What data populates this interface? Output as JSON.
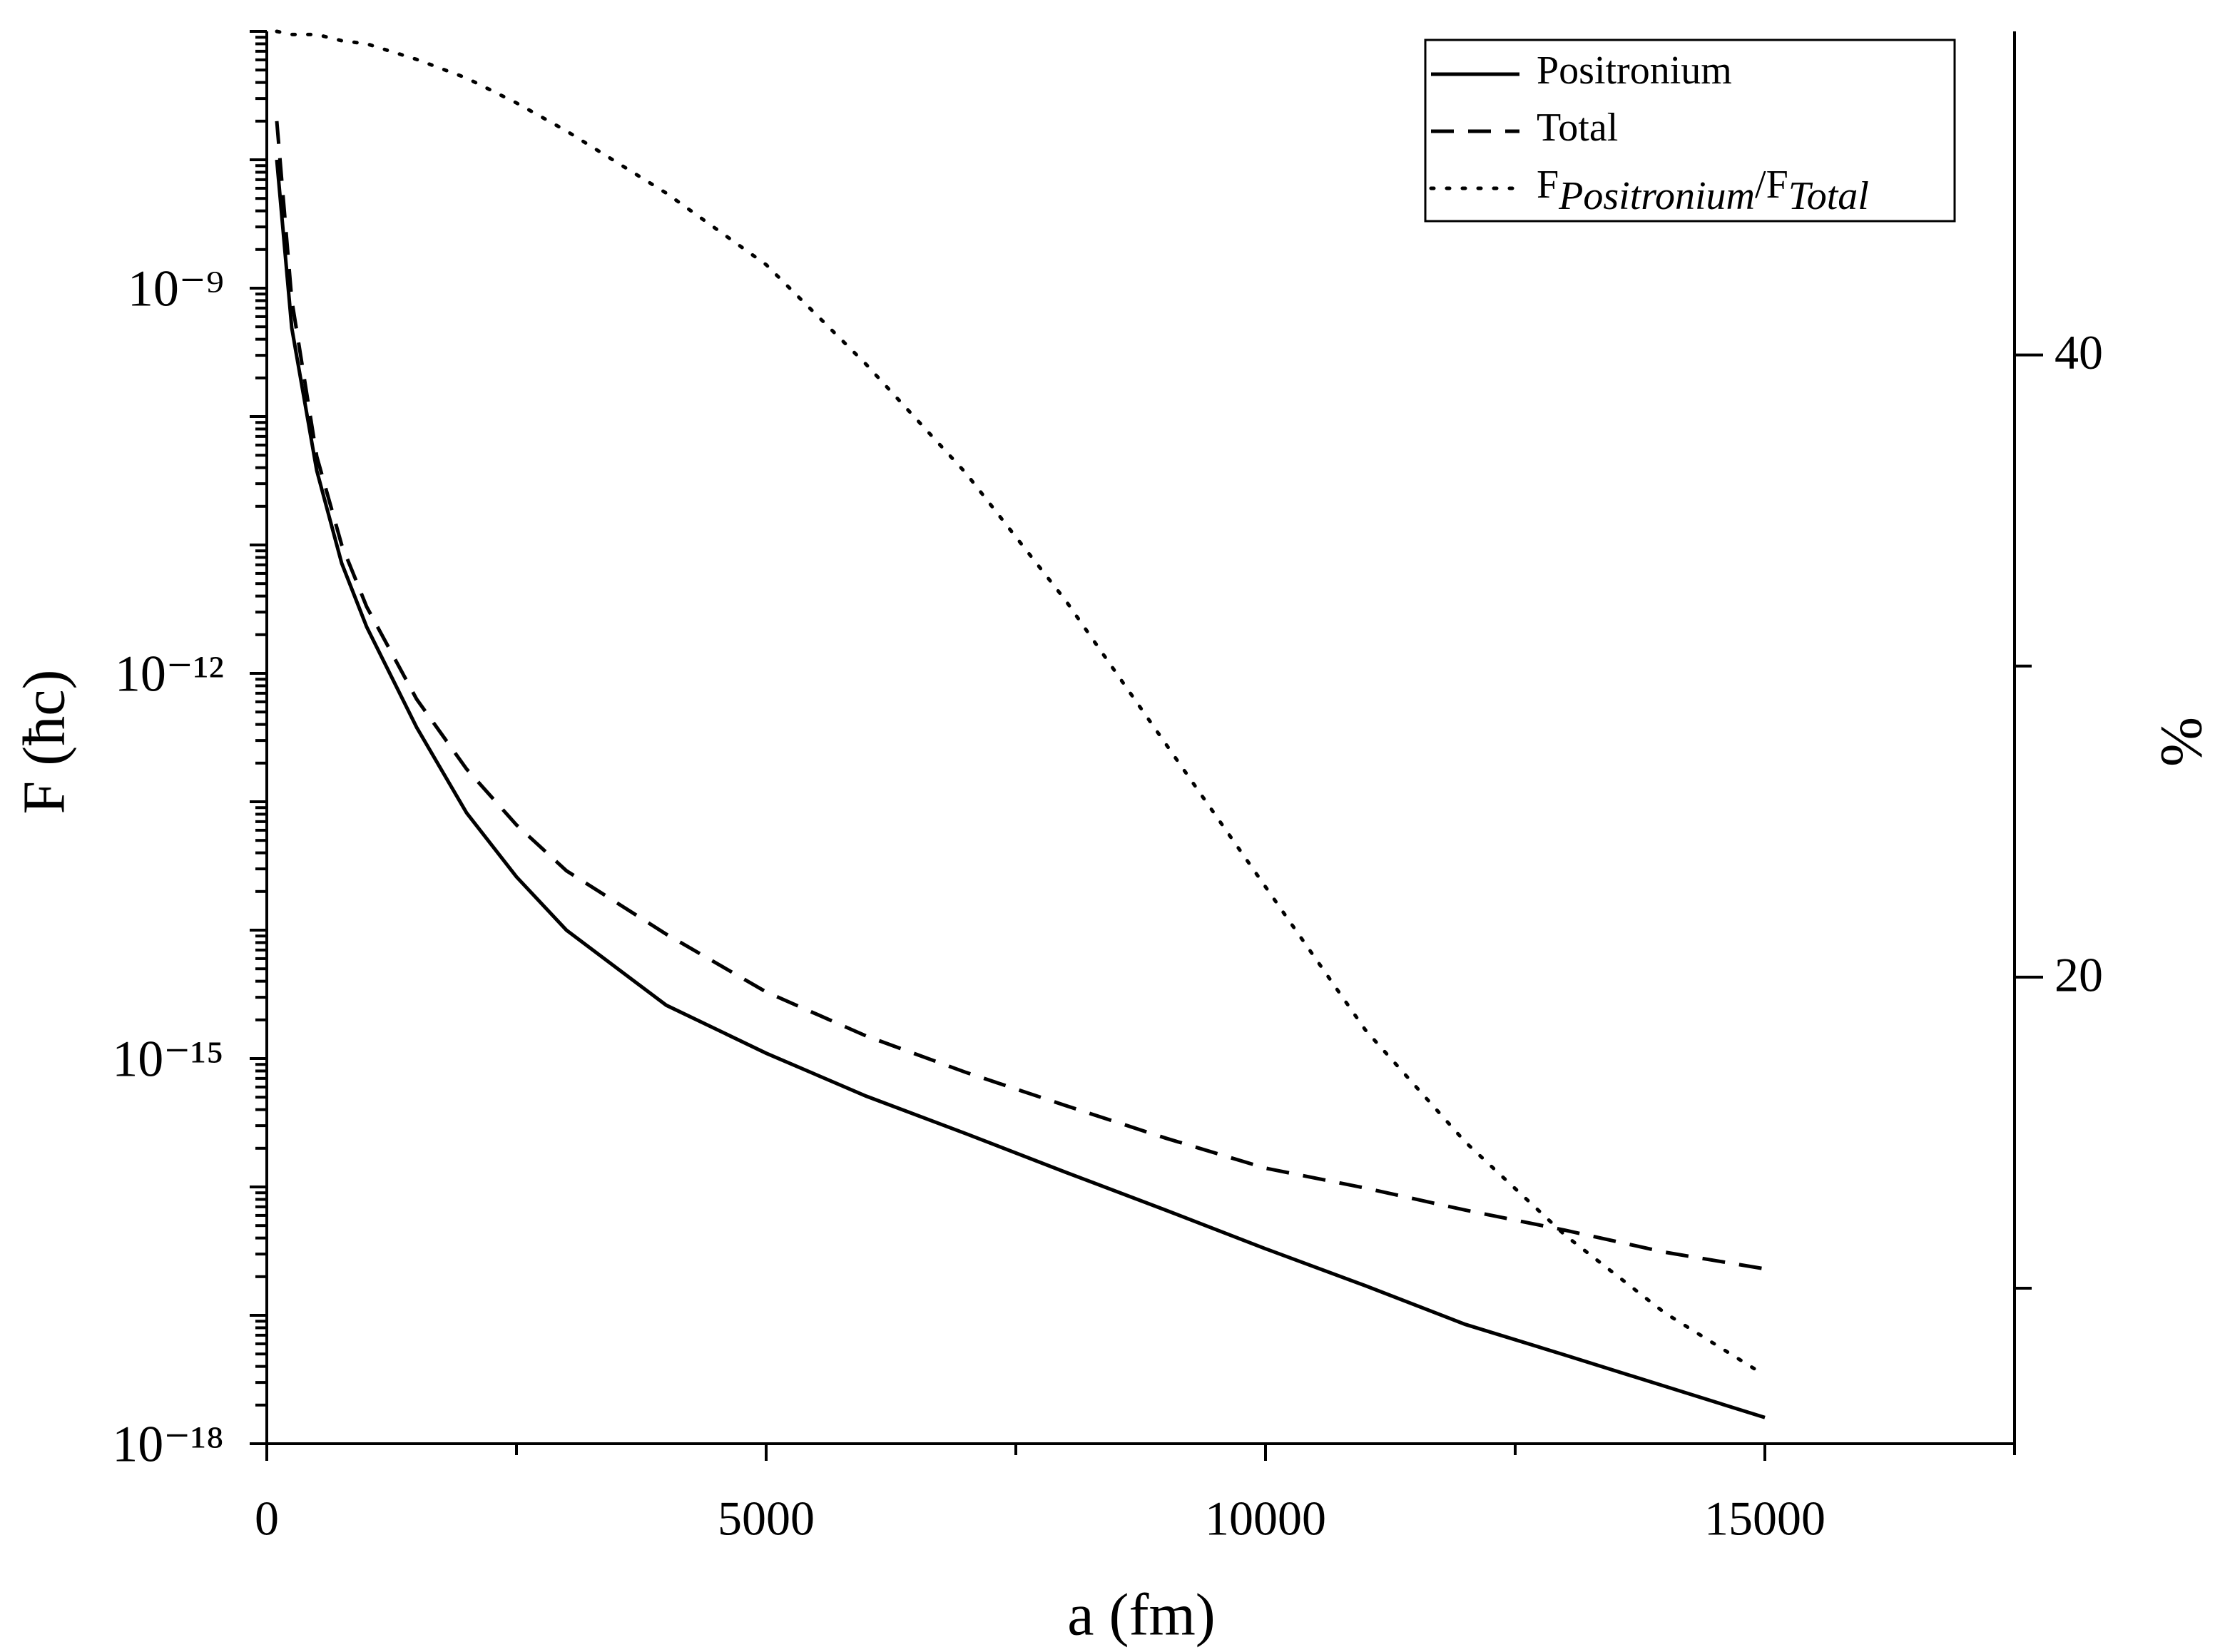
{
  "chart_data": {
    "type": "line",
    "x_label": "a (fm)",
    "y_label": "F (ħc)",
    "y2_label": "%",
    "x": [
      100,
      250,
      500,
      750,
      1000,
      1500,
      2000,
      2500,
      3000,
      4000,
      5000,
      6000,
      7000,
      8000,
      9000,
      10000,
      11000,
      12000,
      13000,
      14000,
      15000
    ],
    "series": [
      {
        "name": "Positronium",
        "color": "#000000",
        "dash": "solid",
        "values": [
          1e-08,
          4.9e-10,
          3.8e-11,
          7.2e-12,
          2.3e-12,
          3.8e-13,
          8.2e-14,
          2.6e-14,
          1e-14,
          2.6e-15,
          1.1e-15,
          5.1e-16,
          2.6e-16,
          1.3e-16,
          6.6e-17,
          3.3e-17,
          1.7e-17,
          8.5e-18,
          4.9e-18,
          2.8e-18,
          1.6e-18
        ]
      },
      {
        "name": "Total",
        "color": "#000000",
        "dash": "dashed",
        "values": [
          2e-08,
          8.1e-10,
          4.9e-11,
          1e-11,
          3.3e-12,
          6.3e-13,
          1.8e-13,
          6.6e-14,
          2.9e-14,
          9.3e-15,
          3.3e-15,
          1.5e-15,
          7.8e-16,
          4.3e-16,
          2.4e-16,
          1.4e-16,
          9.8e-17,
          6.6e-17,
          4.6e-17,
          3.1e-17,
          2.3e-17
        ]
      },
      {
        "name": "FPositronium/FTotal",
        "color": "#000000",
        "dash": "dotted",
        "axis": "y2",
        "values": [
          50.4,
          50.3,
          50.3,
          50.1,
          50.0,
          49.5,
          48.9,
          48.1,
          47.2,
          45.2,
          42.9,
          39.7,
          36.2,
          32.1,
          27.5,
          22.9,
          18.3,
          14.7,
          11.7,
          9.2,
          7.2
        ]
      }
    ],
    "xlim": [
      0,
      17500
    ],
    "xticks": [
      0,
      5000,
      10000,
      15000
    ],
    "xminor_ticks": [
      2500,
      7500,
      12500,
      17500
    ],
    "ylim": [
      1e-18,
      1e-07
    ],
    "y_log": true,
    "yticks": [
      {
        "value": 1e-09,
        "label": "10⁻⁹"
      },
      {
        "value": 1e-12,
        "label": "10⁻¹²"
      },
      {
        "value": 1e-15,
        "label": "10⁻¹⁵"
      },
      {
        "value": 1e-18,
        "label": "10⁻¹⁸"
      }
    ],
    "y_log_minor_ticks": true,
    "y2lim": [
      5,
      50.4
    ],
    "y2ticks": [
      20,
      40
    ],
    "y2minor_ticks": [
      10,
      30
    ],
    "grid": false,
    "legend": "upper-right"
  }
}
